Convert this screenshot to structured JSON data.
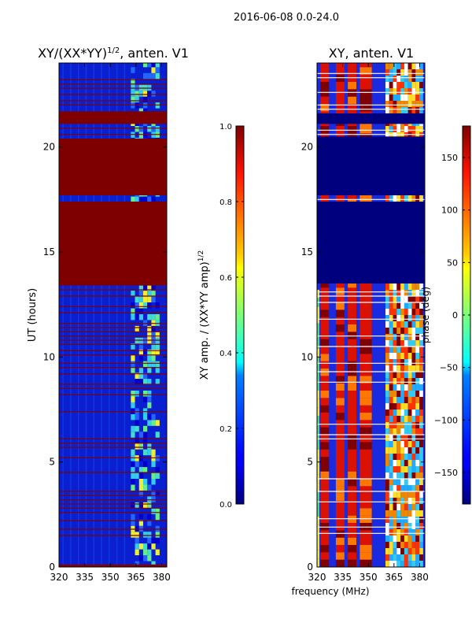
{
  "figure": {
    "suptitle": "2016-06-08 0.0-24.0",
    "xlabel": "frequency (MHz)"
  },
  "colors": {
    "deep_red": "#7f0000",
    "dark_blue": "#00007f",
    "blue": "#0000cc",
    "cyan": "#22ccee",
    "green": "#55dd66",
    "yellow": "#eeee22",
    "orange": "#ff7700",
    "red": "#dd1100",
    "white": "#ffffff"
  },
  "chart_data": [
    {
      "type": "heatmap",
      "title_main": "XY/(XX*YY)",
      "title_exp": "1/2",
      "title_suffix": ", anten. V1",
      "ylabel": "UT (hours)",
      "xlim": [
        320,
        383
      ],
      "ylim": [
        0,
        24
      ],
      "xticks": [
        320,
        335,
        350,
        365,
        380
      ],
      "yticks": [
        0,
        5,
        10,
        15,
        20
      ],
      "bands": [
        {
          "y0": 0.0,
          "y1": 0.12,
          "fill": "deep_red"
        },
        {
          "y0": 13.4,
          "y1": 17.4,
          "fill": "deep_red"
        },
        {
          "y0": 17.7,
          "y1": 20.4,
          "fill": "deep_red"
        },
        {
          "y0": 21.1,
          "y1": 21.7,
          "fill": "deep_red"
        }
      ],
      "lines": [
        1.5,
        1.8,
        2.2,
        2.6,
        2.8,
        3.0,
        3.2,
        3.4,
        3.6,
        4.5,
        5.2,
        5.7,
        5.9,
        6.1,
        7.4,
        8.2,
        8.5,
        8.7,
        9.2,
        9.5,
        9.7,
        10.1,
        10.3,
        10.6,
        10.8,
        11.0,
        11.2,
        11.4,
        11.6,
        12.1,
        12.4,
        12.9,
        13.2,
        20.6,
        20.9,
        22.0,
        22.2,
        22.5,
        22.8,
        23.0,
        23.2
      ],
      "colorbar": {
        "label_main": "XY amp. / (XX*YY amp)",
        "label_exp": "1/2",
        "ticks": [
          "0.0",
          "0.2",
          "0.4",
          "0.6",
          "0.8",
          "1.0"
        ],
        "values": [
          0.0,
          0.2,
          0.4,
          0.6,
          0.8,
          1.0
        ],
        "min": 0.0,
        "max": 1.0
      }
    },
    {
      "type": "heatmap",
      "title_main": "XY, anten. V1",
      "ylabel": "",
      "xlim": [
        320,
        383
      ],
      "ylim": [
        0,
        24
      ],
      "xticks": [
        320,
        335,
        350,
        365,
        380
      ],
      "yticks": [
        0,
        5,
        10,
        15,
        20
      ],
      "bands": [
        {
          "y0": 13.5,
          "y1": 17.4,
          "fill": "dark_blue"
        },
        {
          "y0": 17.7,
          "y1": 20.5,
          "fill": "dark_blue"
        },
        {
          "y0": 21.1,
          "y1": 21.6,
          "fill": "dark_blue"
        }
      ],
      "lines": [
        1.6,
        1.9,
        2.3,
        3.1,
        3.6,
        4.2,
        6.1,
        6.3,
        6.8,
        8.8,
        9.3,
        9.7,
        10.5,
        11.0,
        11.8,
        12.6,
        12.9,
        13.1,
        17.5,
        20.6,
        20.8,
        21.8,
        22.0,
        22.6,
        23.3,
        23.5
      ],
      "colorbar": {
        "label_main": "phase (deg)",
        "ticks": [
          "150",
          "100",
          "50",
          "0",
          "−50",
          "−100",
          "−150"
        ],
        "values": [
          150,
          100,
          50,
          0,
          -50,
          -100,
          -150
        ],
        "min": -180,
        "max": 180
      }
    }
  ]
}
